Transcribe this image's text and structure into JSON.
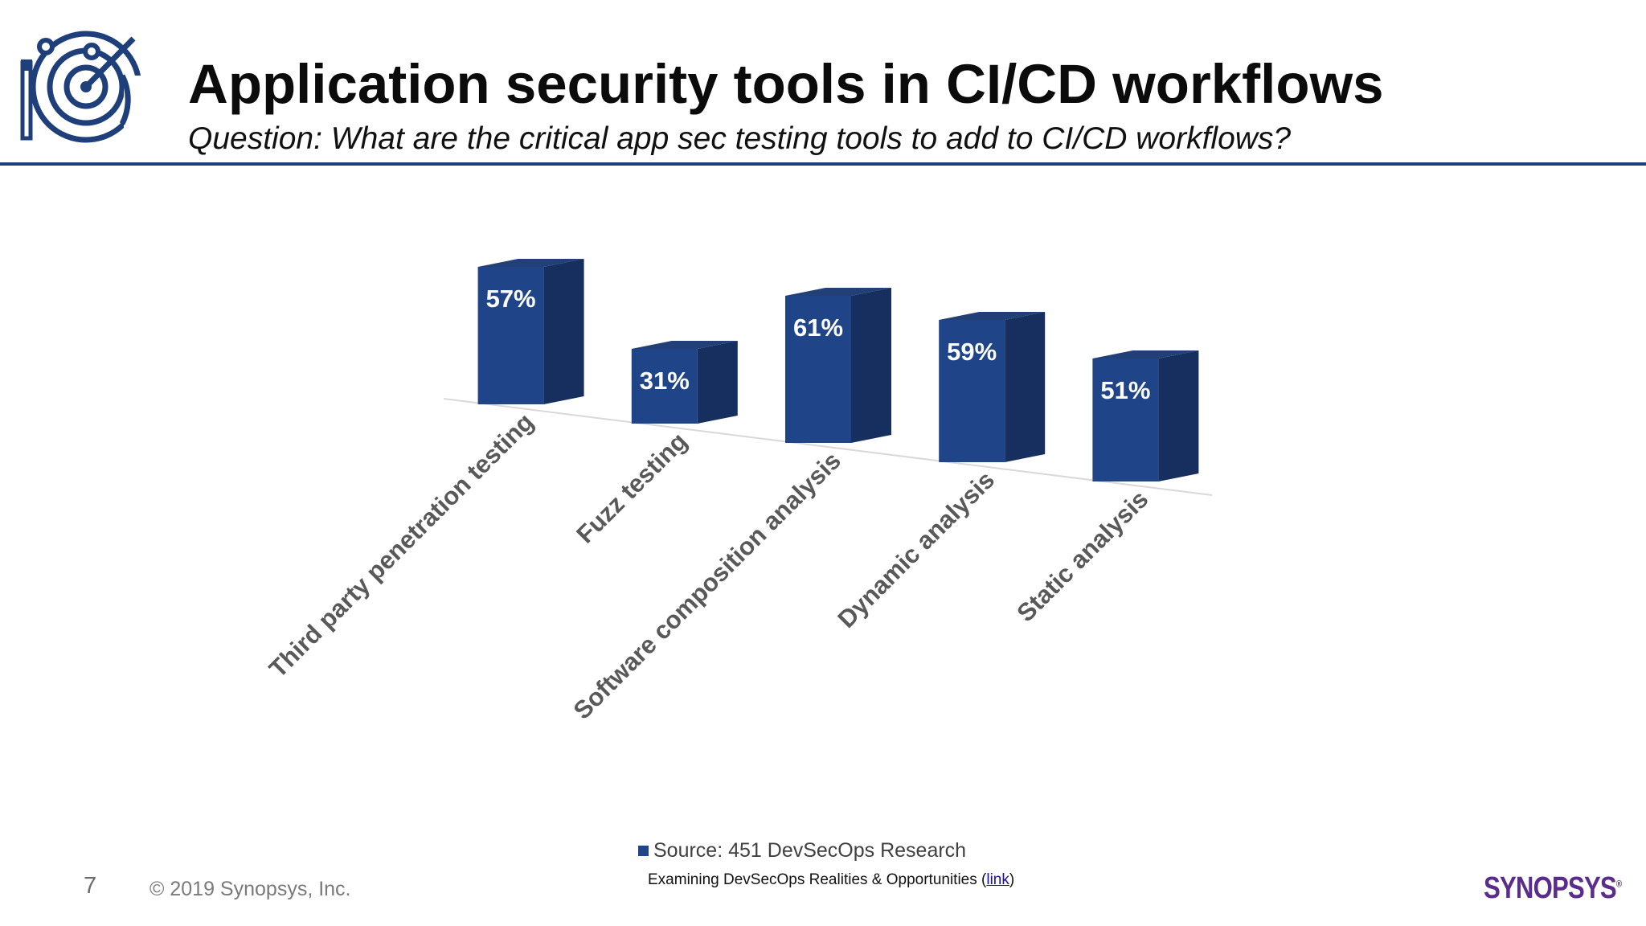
{
  "header": {
    "title": "Application security tools in CI/CD workflows",
    "subtitle": "Question: What are the critical app sec testing tools to add to CI/CD workflows?"
  },
  "chart_data": {
    "type": "bar",
    "categories": [
      "Third party penetration testing",
      "Fuzz testing",
      "Software composition analysis",
      "Dynamic analysis",
      "Static analysis"
    ],
    "series": [
      {
        "name": "Source: 451 DevSecOps Research",
        "values": [
          57,
          31,
          61,
          59,
          51
        ]
      }
    ],
    "data_labels": [
      "57%",
      "31%",
      "61%",
      "59%",
      "51%"
    ],
    "unit": "%",
    "ylim": [
      0,
      70
    ],
    "grid": false,
    "legend_position": "bottom",
    "style": "3d-column",
    "bar_colors": {
      "front": "#1f4588",
      "side": "#162f5f",
      "top": "#233f78"
    }
  },
  "footer": {
    "source_note_prefix": "Examining DevSecOps Realities & Opportunities (",
    "source_link_text": "link",
    "source_note_suffix": ")",
    "page_number": "7",
    "copyright": "© 2019 Synopsys, Inc.",
    "brand": "SYNOPSYS",
    "brand_mark": "®"
  },
  "colors": {
    "accent": "#1f3f7a",
    "brand": "#5a2d8c"
  }
}
